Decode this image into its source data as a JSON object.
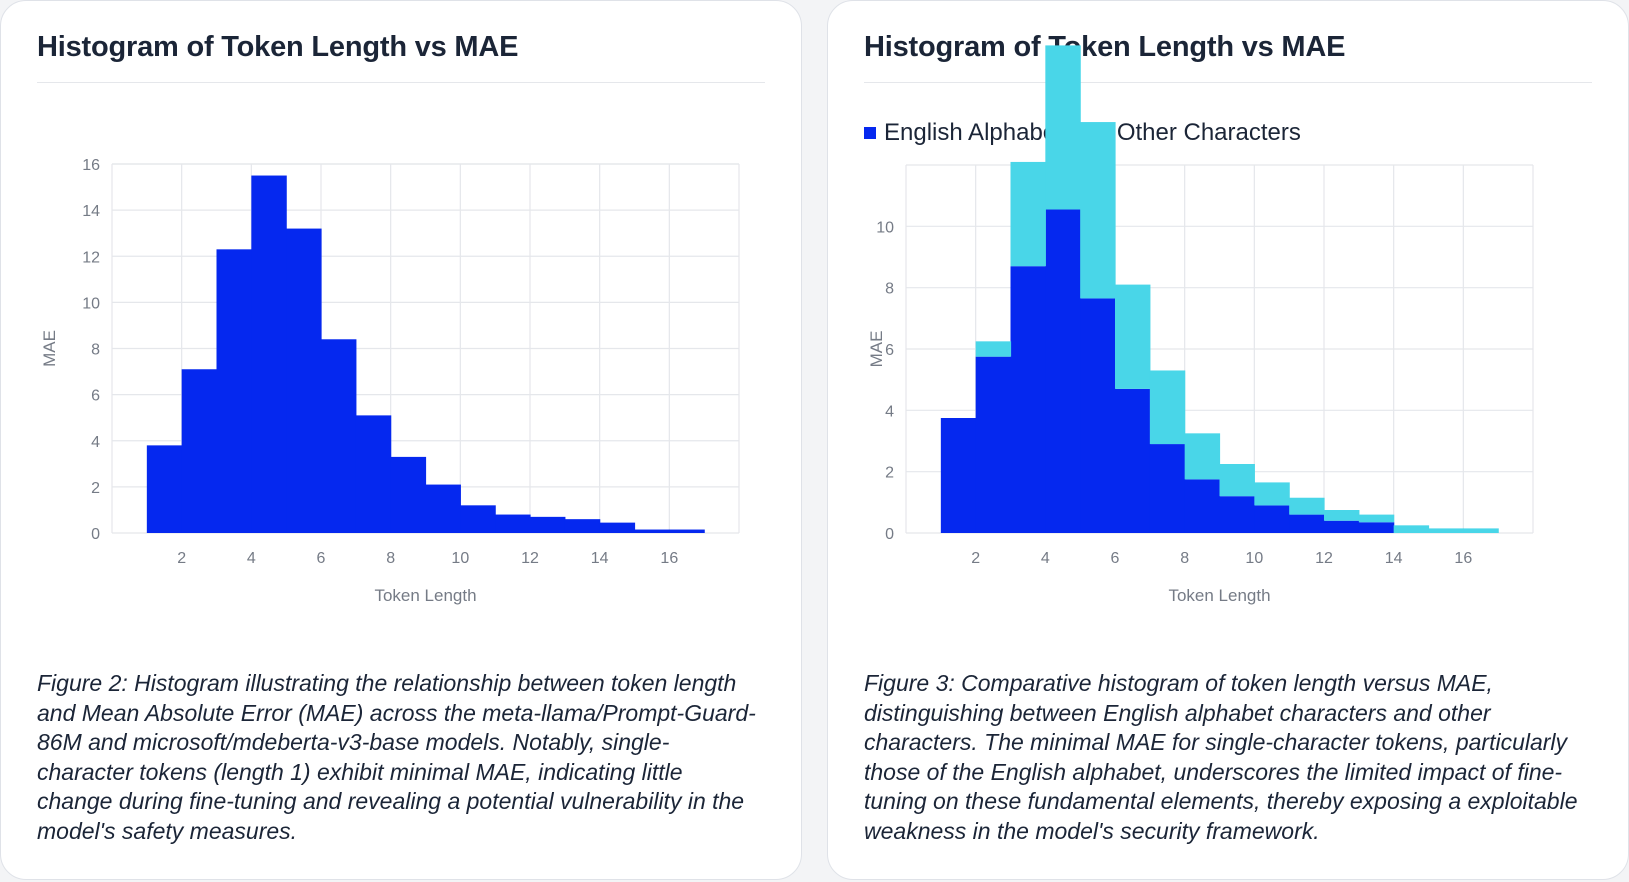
{
  "figures": [
    {
      "title": "Histogram of Token Length vs MAE",
      "caption": "Figure 2: Histogram illustrating the relationship between token length and Mean Absolute Error (MAE) across the meta-llama/Prompt-Guard-86M and microsoft/mdeberta-v3-base models. Notably, single-character tokens (length 1) exhibit minimal MAE, indicating little change during fine-tuning and revealing a potential vulnerability in the model's safety measures."
    },
    {
      "title": "Histogram of Token Length vs MAE",
      "caption": "Figure 3: Comparative histogram of token length versus MAE, distinguishing between English alphabet characters and other characters. The minimal MAE for single-character tokens, particularly those of the English alphabet, underscores the limited impact of fine-tuning on these fundamental elements, thereby exposing a exploitable weakness in the model's security framework.",
      "legend": [
        "English Alphabet",
        "Other Characters"
      ]
    }
  ],
  "colors": {
    "english": "#0528ef",
    "other": "#49d6e8",
    "grid": "#e5e7eb",
    "tick": "#757b86"
  },
  "chart_data": [
    {
      "type": "bar",
      "title": "Histogram of Token Length vs MAE",
      "xlabel": "Token Length",
      "ylabel": "MAE",
      "xlim": [
        0,
        18
      ],
      "ylim": [
        0,
        16
      ],
      "xticks": [
        2,
        4,
        6,
        8,
        10,
        12,
        14,
        16
      ],
      "yticks": [
        0,
        2,
        4,
        6,
        8,
        10,
        12,
        14,
        16
      ],
      "bin_edges": [
        1,
        2,
        3,
        4,
        5,
        6,
        7,
        8,
        9,
        10,
        11,
        12,
        13,
        14,
        15,
        16,
        17
      ],
      "series": [
        {
          "name": "MAE",
          "color": "#0528ef",
          "values": [
            3.8,
            7.1,
            12.3,
            15.5,
            13.2,
            8.4,
            5.1,
            3.3,
            2.1,
            1.2,
            0.8,
            0.7,
            0.6,
            0.45,
            0.15,
            0.15
          ]
        }
      ],
      "legend": false,
      "grid": true
    },
    {
      "type": "bar",
      "title": "Histogram of Token Length vs MAE",
      "xlabel": "Token Length",
      "ylabel": "MAE",
      "xlim": [
        0,
        18
      ],
      "ylim": [
        0,
        12
      ],
      "xticks": [
        2,
        4,
        6,
        8,
        10,
        12,
        14,
        16
      ],
      "yticks": [
        0,
        2,
        4,
        6,
        8,
        10
      ],
      "bin_edges": [
        1,
        2,
        3,
        4,
        5,
        6,
        7,
        8,
        9,
        10,
        11,
        12,
        13,
        14,
        15,
        16,
        17
      ],
      "series": [
        {
          "name": "English Alphabet",
          "color": "#0528ef",
          "values": [
            3.75,
            5.75,
            8.7,
            10.55,
            7.65,
            4.7,
            2.9,
            1.75,
            1.2,
            0.9,
            0.6,
            0.4,
            0.35,
            0.0,
            0.0,
            0.0
          ]
        },
        {
          "name": "Other Characters",
          "color": "#49d6e8",
          "values": [
            0.0,
            0.5,
            3.4,
            5.35,
            5.75,
            3.4,
            2.4,
            1.5,
            1.05,
            0.75,
            0.55,
            0.35,
            0.25,
            0.25,
            0.15,
            0.15
          ]
        }
      ],
      "legend": "top-left",
      "grid": true
    }
  ]
}
